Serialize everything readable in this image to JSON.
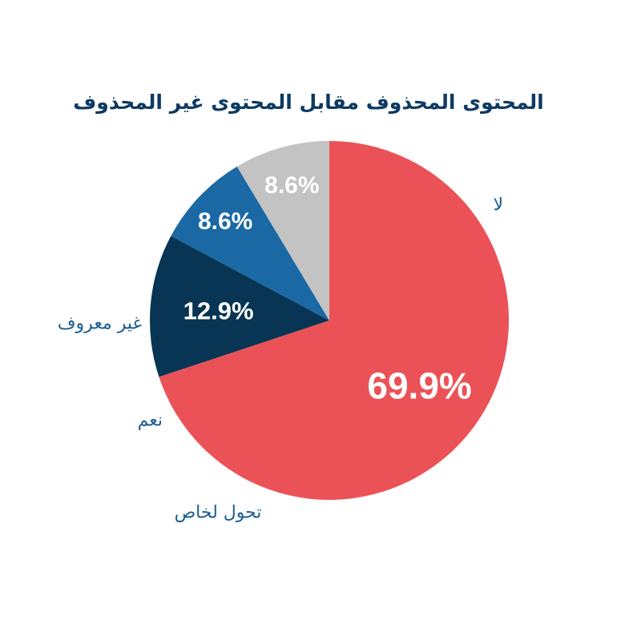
{
  "chart_data": {
    "type": "pie",
    "title": "المحتوى المحذوف مقابل المحتوى غير المحذوف",
    "slices": [
      {
        "label": "لا",
        "value": 69.9,
        "value_label": "69.9%",
        "color": "#eb5257",
        "text_color": "#ffffff"
      },
      {
        "label": "تحول لخاص",
        "value": 12.9,
        "value_label": "12.9%",
        "color": "#073553",
        "text_color": "#ffffff"
      },
      {
        "label": "نعم",
        "value": 8.6,
        "value_label": "8.6%",
        "color": "#1a69a5",
        "text_color": "#ffffff"
      },
      {
        "label": "غير معروف",
        "value": 8.6,
        "value_label": "8.6%",
        "color": "#c3c3c3",
        "text_color": "#5a5a5a"
      }
    ],
    "start_angle": "12 o'clock",
    "direction": "clockwise"
  }
}
